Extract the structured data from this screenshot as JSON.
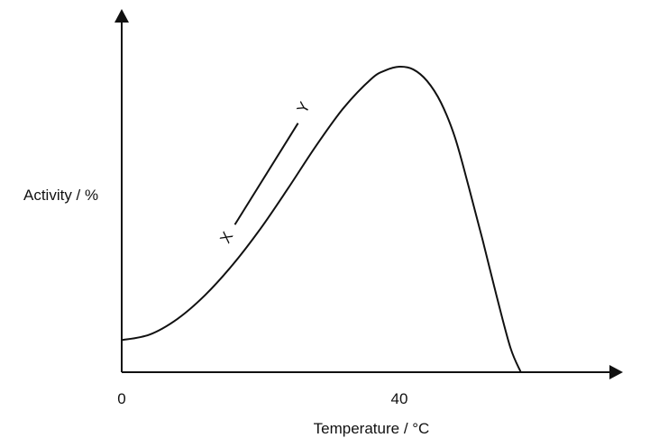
{
  "chart_data": {
    "type": "line",
    "title": "",
    "xlabel": "Temperature / °C",
    "ylabel": "Activity / %",
    "x_ticks": [
      {
        "value": 0,
        "label": "0"
      },
      {
        "value": 40,
        "label": "40"
      }
    ],
    "xlim": [
      0,
      72
    ],
    "ylim": [
      0,
      100
    ],
    "grid": false,
    "legend": "none",
    "series": [
      {
        "x": [
          0,
          4,
          8,
          12,
          16,
          20,
          24,
          28,
          32,
          36,
          38,
          40,
          42,
          44,
          46,
          48,
          50,
          52,
          54,
          56,
          57.5
        ],
        "y": [
          10.5,
          12.3,
          17.4,
          25.2,
          35.2,
          47.0,
          60.3,
          74.1,
          86.6,
          96.1,
          98.8,
          100,
          99.1,
          95.3,
          88.2,
          76.9,
          60.6,
          43.2,
          25.0,
          8.0,
          0
        ]
      }
    ],
    "annotations": {
      "line_segment": {
        "x": [
          16.3,
          25.4
        ],
        "y": [
          48.3,
          81.5
        ]
      },
      "labels": [
        {
          "text": "X",
          "x": 15.1,
          "y": 44.1,
          "rotation": -62
        },
        {
          "text": "Y",
          "x": 26.2,
          "y": 86.6,
          "rotation": -62
        }
      ]
    },
    "colors": {
      "line": "#111111",
      "axis": "#111111",
      "background": "#ffffff"
    }
  }
}
